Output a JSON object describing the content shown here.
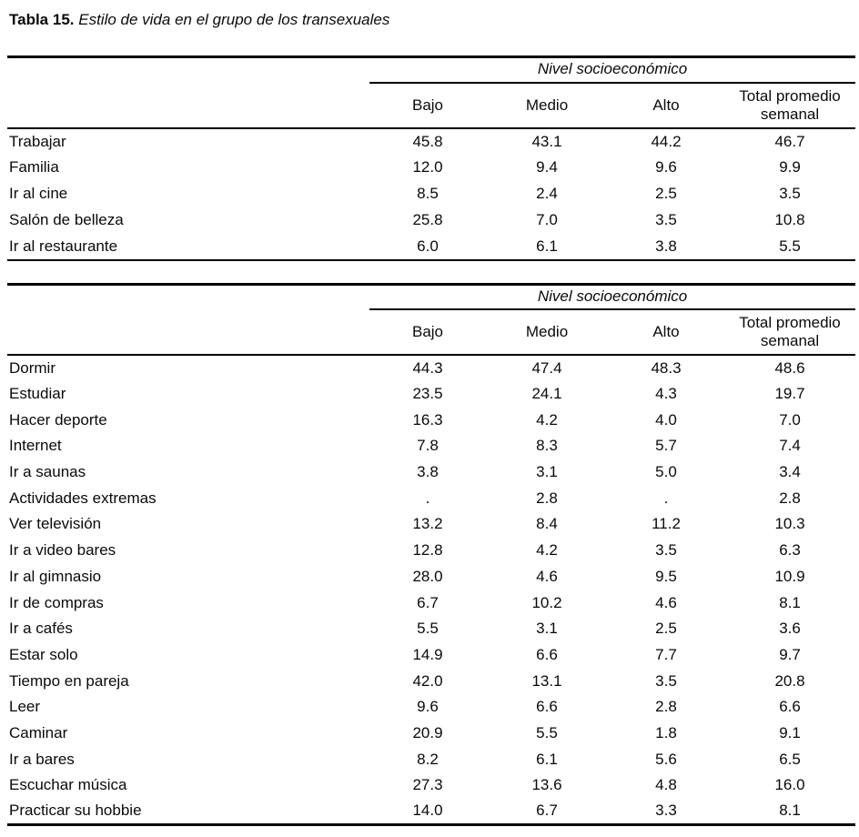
{
  "title": {
    "label": "Tabla 15.",
    "caption": "Estilo de vida en el grupo de los transexuales"
  },
  "tables": [
    {
      "name": "estilo-de-vida-parte-1",
      "group_header": "Nivel socioeconómico",
      "columns": [
        "Bajo",
        "Medio",
        "Alto",
        "Total promedio semanal"
      ],
      "rows": [
        {
          "label": "Trabajar",
          "values": [
            "45.8",
            "43.1",
            "44.2",
            "46.7"
          ]
        },
        {
          "label": "Familia",
          "values": [
            "12.0",
            "9.4",
            "9.6",
            "9.9"
          ]
        },
        {
          "label": "Ir al cine",
          "values": [
            "8.5",
            "2.4",
            "2.5",
            "3.5"
          ]
        },
        {
          "label": "Salón de belleza",
          "values": [
            "25.8",
            "7.0",
            "3.5",
            "10.8"
          ]
        },
        {
          "label": "Ir al restaurante",
          "values": [
            "6.0",
            "6.1",
            "3.8",
            "5.5"
          ]
        }
      ]
    },
    {
      "name": "estilo-de-vida-parte-2",
      "group_header": "Nivel socioeconómico",
      "columns": [
        "Bajo",
        "Medio",
        "Alto",
        "Total promedio semanal"
      ],
      "rows": [
        {
          "label": "Dormir",
          "values": [
            "44.3",
            "47.4",
            "48.3",
            "48.6"
          ]
        },
        {
          "label": "Estudiar",
          "values": [
            "23.5",
            "24.1",
            "4.3",
            "19.7"
          ]
        },
        {
          "label": "Hacer deporte",
          "values": [
            "16.3",
            "4.2",
            "4.0",
            "7.0"
          ]
        },
        {
          "label": "Internet",
          "values": [
            "7.8",
            "8.3",
            "5.7",
            "7.4"
          ]
        },
        {
          "label": "Ir a saunas",
          "values": [
            "3.8",
            "3.1",
            "5.0",
            "3.4"
          ]
        },
        {
          "label": "Actividades extremas",
          "values": [
            ".",
            "2.8",
            ".",
            "2.8"
          ]
        },
        {
          "label": "Ver televisión",
          "values": [
            "13.2",
            "8.4",
            "11.2",
            "10.3"
          ]
        },
        {
          "label": "Ir a video bares",
          "values": [
            "12.8",
            "4.2",
            "3.5",
            "6.3"
          ]
        },
        {
          "label": "Ir al gimnasio",
          "values": [
            "28.0",
            "4.6",
            "9.5",
            "10.9"
          ]
        },
        {
          "label": "Ir de compras",
          "values": [
            "6.7",
            "10.2",
            "4.6",
            "8.1"
          ]
        },
        {
          "label": "Ir a cafés",
          "values": [
            "5.5",
            "3.1",
            "2.5",
            "3.6"
          ]
        },
        {
          "label": "Estar solo",
          "values": [
            "14.9",
            "6.6",
            "7.7",
            "9.7"
          ]
        },
        {
          "label": "Tiempo en pareja",
          "values": [
            "42.0",
            "13.1",
            "3.5",
            "20.8"
          ]
        },
        {
          "label": "Leer",
          "values": [
            "9.6",
            "6.6",
            "2.8",
            "6.6"
          ]
        },
        {
          "label": "Caminar",
          "values": [
            "20.9",
            "5.5",
            "1.8",
            "9.1"
          ]
        },
        {
          "label": "Ir a bares",
          "values": [
            "8.2",
            "6.1",
            "5.6",
            "6.5"
          ]
        },
        {
          "label": "Escuchar música",
          "values": [
            "27.3",
            "13.6",
            "4.8",
            "16.0"
          ]
        },
        {
          "label": "Practicar su hobbie",
          "values": [
            "14.0",
            "6.7",
            "3.3",
            "8.1"
          ]
        }
      ]
    }
  ],
  "colors": {
    "text": "#0a0a0a",
    "rule": "#000000",
    "background": "#ffffff"
  }
}
